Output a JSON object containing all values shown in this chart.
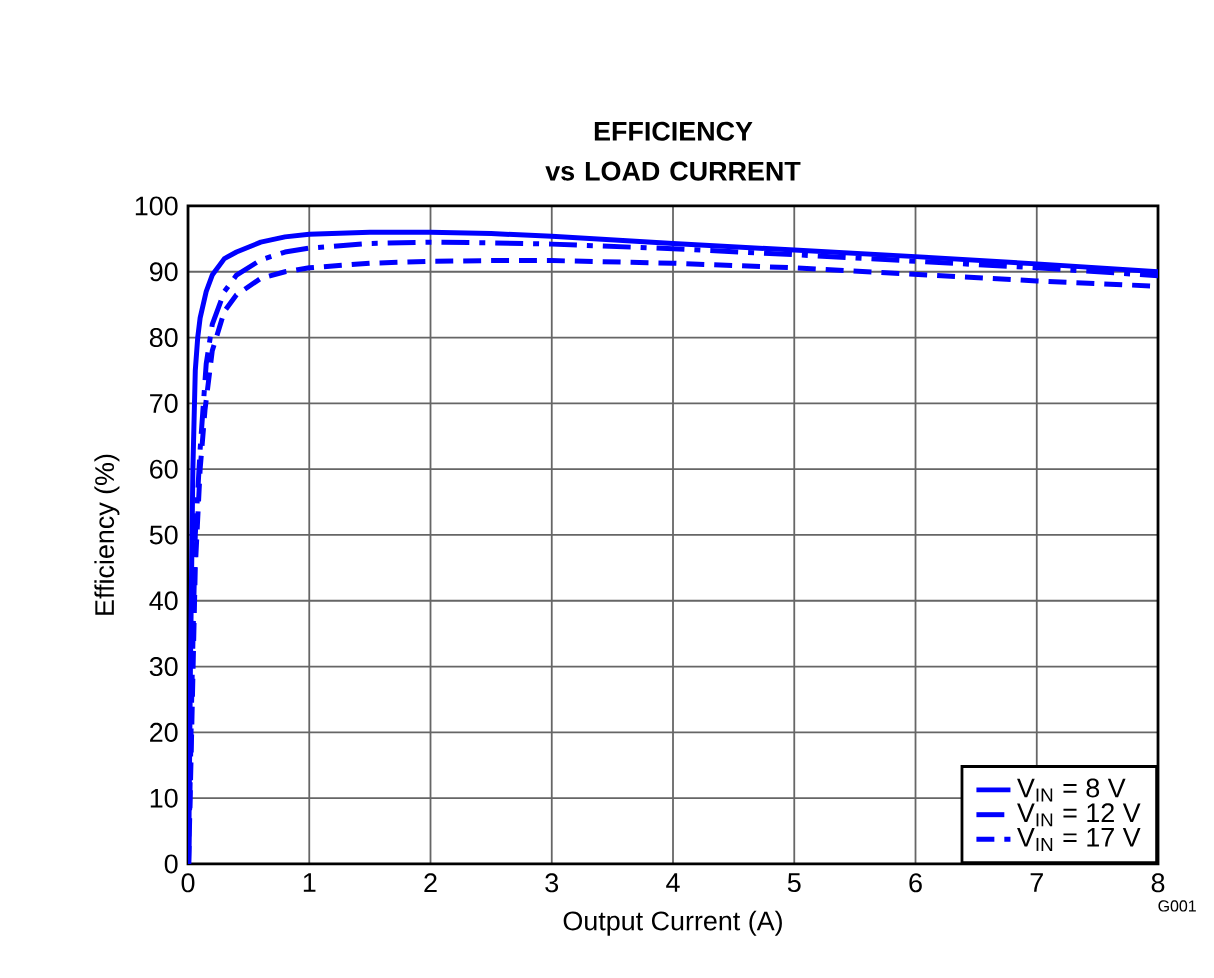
{
  "chart_data": {
    "type": "line",
    "title": "EFFICIENCY",
    "subtitle": "vs LOAD CURRENT",
    "xlabel": "Output Current (A)",
    "ylabel": "Efficiency (%)",
    "xlim": [
      0,
      8
    ],
    "ylim": [
      0,
      100
    ],
    "xticks": [
      0,
      1,
      2,
      3,
      4,
      5,
      6,
      7,
      8
    ],
    "yticks": [
      0,
      10,
      20,
      30,
      40,
      50,
      60,
      70,
      80,
      90,
      100
    ],
    "grid": true,
    "legend": "bottom right",
    "marker": "none",
    "annotations": [
      "G001"
    ],
    "series": [
      {
        "name": "V$_{IN}$  =  8 V",
        "color": "#0000ff",
        "line_style": "solid",
        "x": [
          0.005,
          0.02,
          0.04,
          0.06,
          0.08,
          0.1,
          0.15,
          0.2,
          0.3,
          0.4,
          0.6,
          0.8,
          1,
          1.5,
          2,
          2.5,
          3,
          4,
          5,
          6,
          7,
          8
        ],
        "values": [
          0,
          30,
          60,
          75,
          80,
          83,
          87,
          89.5,
          92,
          93,
          94.5,
          95.3,
          95.7,
          96,
          96,
          95.8,
          95.4,
          94.3,
          93.3,
          92.3,
          91.2,
          90
        ]
      },
      {
        "name": "V$_{IN}$  =  12 V",
        "color": "#0000ff",
        "line_style": "dashdot",
        "x": [
          0.005,
          0.03,
          0.06,
          0.1,
          0.15,
          0.2,
          0.3,
          0.4,
          0.6,
          0.8,
          1,
          1.5,
          2,
          2.5,
          3,
          4,
          5,
          6,
          7,
          8
        ],
        "values": [
          0,
          25,
          50,
          63,
          76,
          82,
          87,
          89.5,
          91.8,
          93,
          93.6,
          94.3,
          94.5,
          94.4,
          94.2,
          93.5,
          92.6,
          91.6,
          90.6,
          89.4
        ]
      },
      {
        "name": "V$_{IN}$  =  17 V",
        "color": "#0000ff",
        "line_style": "dashed",
        "x": [
          0.005,
          0.03,
          0.06,
          0.1,
          0.14,
          0.2,
          0.3,
          0.4,
          0.6,
          0.8,
          1,
          1.5,
          2,
          2.5,
          3,
          4,
          5,
          6,
          7,
          8
        ],
        "values": [
          0,
          20,
          45,
          60,
          69,
          78,
          84,
          86.5,
          89,
          90,
          90.6,
          91.3,
          91.6,
          91.7,
          91.7,
          91.3,
          90.6,
          89.6,
          88.6,
          87.8
        ]
      }
    ]
  }
}
